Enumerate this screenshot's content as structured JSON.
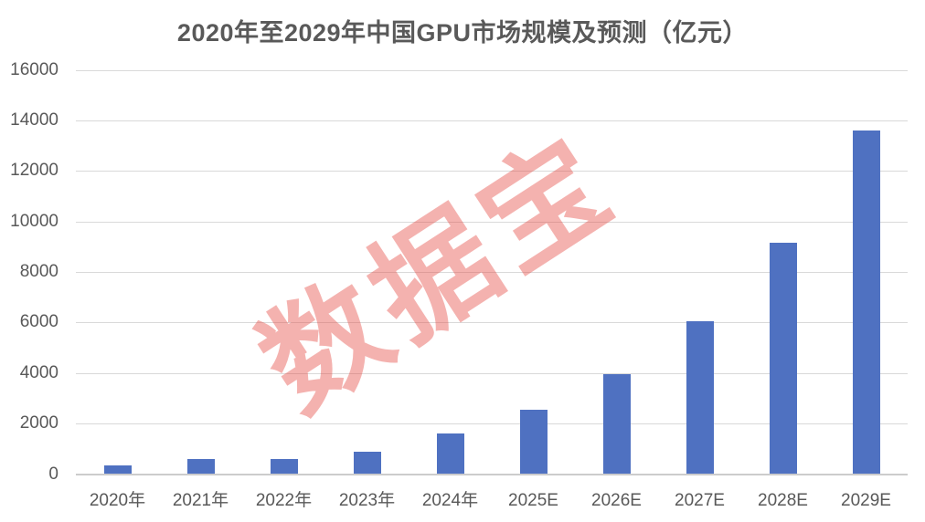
{
  "chart_data": {
    "type": "bar",
    "title": "2020年至2029年中国GPU市场规模及预测（亿元）",
    "categories": [
      "2020年",
      "2021年",
      "2022年",
      "2023年",
      "2024年",
      "2025E",
      "2026E",
      "2027E",
      "2028E",
      "2029E"
    ],
    "values": [
      350,
      600,
      600,
      900,
      1600,
      2550,
      3950,
      6050,
      9150,
      13600
    ],
    "xlabel": "",
    "ylabel": "",
    "ylim": [
      0,
      16000
    ],
    "yticks": [
      0,
      2000,
      4000,
      6000,
      8000,
      10000,
      12000,
      14000,
      16000
    ],
    "grid": true,
    "legend": false,
    "bar_color": "#4f71c1"
  },
  "watermark": {
    "text": "数据宝",
    "color": "rgba(228, 72, 64, 0.42)"
  },
  "style": {
    "title_color": "#595959",
    "axis_label_color": "#595959",
    "gridline_color": "#d9d9d9",
    "baseline_color": "#cccccc",
    "background": "#ffffff"
  }
}
